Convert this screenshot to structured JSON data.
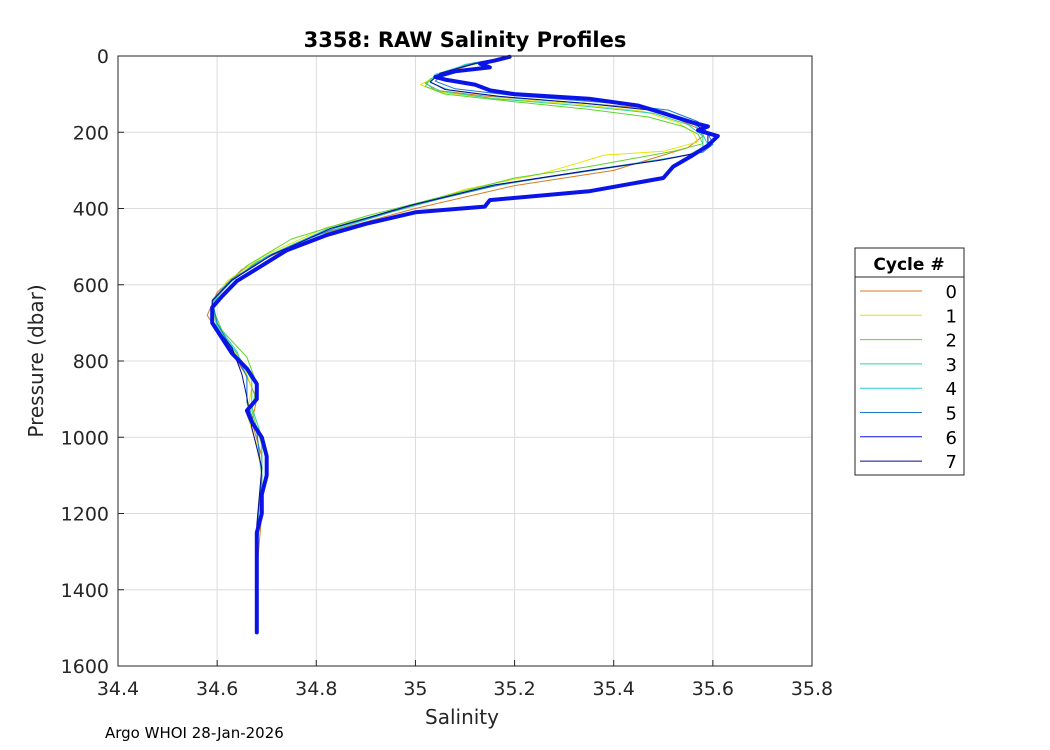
{
  "chart_data": {
    "type": "line",
    "title": "3358: RAW Salinity Profiles",
    "xlabel": "Salinity",
    "ylabel": "Pressure (dbar)",
    "xlim": [
      34.4,
      35.8
    ],
    "ylim": [
      0,
      1600
    ],
    "y_reversed": true,
    "grid": true,
    "xticks": [
      "34.4",
      "34.6",
      "34.8",
      "35",
      "35.2",
      "35.4",
      "35.6",
      "35.8"
    ],
    "yticks": [
      "0",
      "200",
      "400",
      "600",
      "800",
      "1000",
      "1200",
      "1400",
      "1600"
    ],
    "legend": {
      "title": "Cycle #",
      "placement": "outside-right"
    },
    "series": [
      {
        "name": "0",
        "color": "#d87a1f",
        "points": [
          [
            35.18,
            5
          ],
          [
            35.12,
            20
          ],
          [
            35.06,
            45
          ],
          [
            35.02,
            70
          ],
          [
            35.04,
            90
          ],
          [
            35.14,
            105
          ],
          [
            35.3,
            120
          ],
          [
            35.45,
            135
          ],
          [
            35.52,
            160
          ],
          [
            35.57,
            190
          ],
          [
            35.58,
            210
          ],
          [
            35.55,
            240
          ],
          [
            35.5,
            260
          ],
          [
            35.4,
            300
          ],
          [
            35.2,
            340
          ],
          [
            35.0,
            400
          ],
          [
            34.8,
            470
          ],
          [
            34.65,
            560
          ],
          [
            34.6,
            620
          ],
          [
            34.58,
            680
          ],
          [
            34.62,
            760
          ],
          [
            34.66,
            840
          ],
          [
            34.68,
            900
          ],
          [
            34.67,
            960
          ],
          [
            34.69,
            1050
          ],
          [
            34.69,
            1200
          ],
          [
            34.68,
            1350
          ],
          [
            34.68,
            1500
          ]
        ]
      },
      {
        "name": "1",
        "color": "#e6e600",
        "points": [
          [
            35.18,
            5
          ],
          [
            35.1,
            25
          ],
          [
            35.04,
            55
          ],
          [
            35.01,
            75
          ],
          [
            35.05,
            95
          ],
          [
            35.15,
            110
          ],
          [
            35.32,
            125
          ],
          [
            35.46,
            145
          ],
          [
            35.53,
            175
          ],
          [
            35.56,
            200
          ],
          [
            35.57,
            225
          ],
          [
            35.5,
            250
          ],
          [
            35.38,
            260
          ],
          [
            35.33,
            280
          ],
          [
            35.25,
            310
          ],
          [
            35.1,
            350
          ],
          [
            34.98,
            400
          ],
          [
            34.82,
            450
          ],
          [
            34.7,
            520
          ],
          [
            34.62,
            590
          ],
          [
            34.59,
            650
          ],
          [
            34.6,
            720
          ],
          [
            34.65,
            800
          ],
          [
            34.67,
            870
          ],
          [
            34.66,
            940
          ],
          [
            34.68,
            1020
          ],
          [
            34.69,
            1100
          ],
          [
            34.68,
            1250
          ],
          [
            34.68,
            1400
          ],
          [
            34.68,
            1500
          ]
        ]
      },
      {
        "name": "2",
        "color": "#5fd42a",
        "points": [
          [
            35.18,
            5
          ],
          [
            35.09,
            30
          ],
          [
            35.03,
            60
          ],
          [
            35.02,
            80
          ],
          [
            35.06,
            100
          ],
          [
            35.2,
            120
          ],
          [
            35.35,
            140
          ],
          [
            35.47,
            160
          ],
          [
            35.54,
            185
          ],
          [
            35.57,
            205
          ],
          [
            35.58,
            230
          ],
          [
            35.52,
            250
          ],
          [
            35.35,
            290
          ],
          [
            35.2,
            320
          ],
          [
            35.05,
            370
          ],
          [
            34.9,
            420
          ],
          [
            34.75,
            480
          ],
          [
            34.66,
            550
          ],
          [
            34.61,
            610
          ],
          [
            34.59,
            660
          ],
          [
            34.61,
            720
          ],
          [
            34.66,
            790
          ],
          [
            34.68,
            860
          ],
          [
            34.67,
            930
          ],
          [
            34.69,
            1020
          ],
          [
            34.69,
            1150
          ],
          [
            34.68,
            1300
          ],
          [
            34.68,
            1500
          ]
        ]
      },
      {
        "name": "3",
        "color": "#2ed39a",
        "points": [
          [
            35.18,
            5
          ],
          [
            35.1,
            22
          ],
          [
            35.05,
            50
          ],
          [
            35.02,
            72
          ],
          [
            35.05,
            92
          ],
          [
            35.16,
            112
          ],
          [
            35.33,
            130
          ],
          [
            35.48,
            150
          ],
          [
            35.55,
            180
          ],
          [
            35.58,
            210
          ],
          [
            35.58,
            240
          ],
          [
            35.55,
            260
          ],
          [
            35.45,
            280
          ],
          [
            35.3,
            310
          ],
          [
            35.12,
            350
          ],
          [
            34.95,
            410
          ],
          [
            34.8,
            470
          ],
          [
            34.68,
            540
          ],
          [
            34.62,
            600
          ],
          [
            34.59,
            650
          ],
          [
            34.6,
            710
          ],
          [
            34.64,
            780
          ],
          [
            34.67,
            850
          ],
          [
            34.67,
            920
          ],
          [
            34.69,
            1000
          ],
          [
            34.69,
            1150
          ],
          [
            34.68,
            1300
          ],
          [
            34.68,
            1500
          ]
        ]
      },
      {
        "name": "4",
        "color": "#27cfd6",
        "points": [
          [
            35.18,
            5
          ],
          [
            35.11,
            20
          ],
          [
            35.04,
            48
          ],
          [
            35.03,
            70
          ],
          [
            35.07,
            90
          ],
          [
            35.18,
            108
          ],
          [
            35.36,
            126
          ],
          [
            35.5,
            145
          ],
          [
            35.56,
            175
          ],
          [
            35.58,
            205
          ],
          [
            35.59,
            235
          ],
          [
            35.57,
            255
          ],
          [
            35.48,
            275
          ],
          [
            35.35,
            300
          ],
          [
            35.15,
            340
          ],
          [
            34.98,
            395
          ],
          [
            34.82,
            455
          ],
          [
            34.7,
            525
          ],
          [
            34.63,
            590
          ],
          [
            34.59,
            645
          ],
          [
            34.6,
            705
          ],
          [
            34.64,
            775
          ],
          [
            34.66,
            845
          ],
          [
            34.66,
            910
          ],
          [
            34.68,
            990
          ],
          [
            34.69,
            1100
          ],
          [
            34.68,
            1250
          ],
          [
            34.68,
            1500
          ]
        ]
      },
      {
        "name": "5",
        "color": "#1f78d4",
        "points": [
          [
            35.18,
            5
          ],
          [
            35.12,
            18
          ],
          [
            35.06,
            42
          ],
          [
            35.04,
            66
          ],
          [
            35.08,
            86
          ],
          [
            35.2,
            104
          ],
          [
            35.38,
            122
          ],
          [
            35.51,
            142
          ],
          [
            35.57,
            172
          ],
          [
            35.59,
            202
          ],
          [
            35.6,
            232
          ],
          [
            35.58,
            252
          ],
          [
            35.5,
            272
          ],
          [
            35.38,
            296
          ],
          [
            35.18,
            335
          ],
          [
            35.0,
            390
          ],
          [
            34.84,
            450
          ],
          [
            34.71,
            520
          ],
          [
            34.63,
            585
          ],
          [
            34.59,
            640
          ],
          [
            34.6,
            700
          ],
          [
            34.63,
            770
          ],
          [
            34.66,
            840
          ],
          [
            34.66,
            905
          ],
          [
            34.68,
            985
          ],
          [
            34.69,
            1100
          ],
          [
            34.68,
            1250
          ],
          [
            34.68,
            1500
          ]
        ]
      },
      {
        "name": "6",
        "color": "#0a14e8",
        "points": [
          [
            35.19,
            2
          ],
          [
            35.16,
            12
          ],
          [
            35.13,
            20
          ],
          [
            35.15,
            30
          ],
          [
            35.08,
            40
          ],
          [
            35.04,
            55
          ],
          [
            35.06,
            62
          ],
          [
            35.12,
            75
          ],
          [
            35.15,
            90
          ],
          [
            35.2,
            100
          ],
          [
            35.35,
            112
          ],
          [
            35.45,
            130
          ],
          [
            35.5,
            150
          ],
          [
            35.56,
            175
          ],
          [
            35.59,
            185
          ],
          [
            35.57,
            195
          ],
          [
            35.61,
            210
          ],
          [
            35.59,
            235
          ],
          [
            35.56,
            260
          ],
          [
            35.52,
            290
          ],
          [
            35.5,
            320
          ],
          [
            35.35,
            355
          ],
          [
            35.15,
            378
          ],
          [
            35.14,
            395
          ],
          [
            35.0,
            410
          ],
          [
            34.9,
            440
          ],
          [
            34.82,
            470
          ],
          [
            34.74,
            510
          ],
          [
            34.69,
            550
          ],
          [
            34.64,
            590
          ],
          [
            34.61,
            630
          ],
          [
            34.59,
            660
          ],
          [
            34.59,
            700
          ],
          [
            34.61,
            740
          ],
          [
            34.63,
            780
          ],
          [
            34.66,
            820
          ],
          [
            34.68,
            860
          ],
          [
            34.68,
            900
          ],
          [
            34.66,
            930
          ],
          [
            34.67,
            960
          ],
          [
            34.69,
            1000
          ],
          [
            34.7,
            1050
          ],
          [
            34.7,
            1100
          ],
          [
            34.69,
            1150
          ],
          [
            34.69,
            1200
          ],
          [
            34.68,
            1250
          ],
          [
            34.68,
            1300
          ],
          [
            34.68,
            1350
          ],
          [
            34.68,
            1400
          ],
          [
            34.68,
            1450
          ],
          [
            34.68,
            1500
          ],
          [
            34.68,
            1512
          ]
        ]
      },
      {
        "name": "7",
        "color": "#0a0a8c",
        "points": [
          [
            35.18,
            5
          ],
          [
            35.12,
            20
          ],
          [
            35.05,
            45
          ],
          [
            35.03,
            68
          ],
          [
            35.06,
            88
          ],
          [
            35.17,
            106
          ],
          [
            35.34,
            124
          ],
          [
            35.49,
            144
          ],
          [
            35.56,
            174
          ],
          [
            35.59,
            204
          ],
          [
            35.59,
            234
          ],
          [
            35.57,
            254
          ],
          [
            35.49,
            274
          ],
          [
            35.36,
            298
          ],
          [
            35.16,
            338
          ],
          [
            34.99,
            392
          ],
          [
            34.83,
            452
          ],
          [
            34.71,
            522
          ],
          [
            34.63,
            588
          ],
          [
            34.59,
            642
          ],
          [
            34.59,
            700
          ],
          [
            34.63,
            765
          ],
          [
            34.65,
            835
          ],
          [
            34.66,
            895
          ],
          [
            34.67,
            975
          ],
          [
            34.69,
            1080
          ],
          [
            34.68,
            1230
          ],
          [
            34.68,
            1500
          ]
        ]
      }
    ]
  },
  "footer": "Argo WHOI 28-Jan-2026"
}
